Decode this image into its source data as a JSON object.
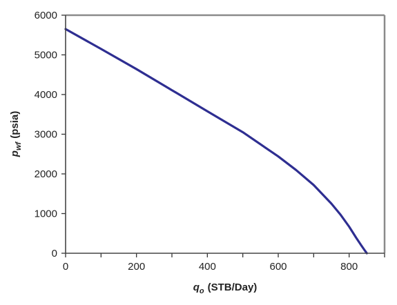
{
  "chart_data": {
    "type": "line",
    "title": "",
    "xlabel": {
      "var": "q",
      "sub": "o",
      "unit": "(STB/Day)"
    },
    "ylabel": {
      "var": "p",
      "sub": "wf",
      "unit": "(psia)"
    },
    "xlim": [
      0,
      900
    ],
    "ylim": [
      0,
      6000
    ],
    "x_ticks": [
      "0",
      "200",
      "400",
      "600",
      "800"
    ],
    "y_ticks": [
      "0",
      "1000",
      "2000",
      "3000",
      "4000",
      "5000",
      "6000"
    ],
    "grid": false,
    "legend": "none",
    "colors": {
      "line": "#2e2e91",
      "frame": "#8a8a8a",
      "tick": "#333333"
    },
    "series": [
      {
        "x": [
          0,
          100,
          200,
          300,
          400,
          500,
          600,
          650,
          700,
          750,
          775,
          800,
          820,
          835,
          845,
          850
        ],
        "y": [
          5651,
          5150,
          4640,
          4110,
          3580,
          3050,
          2440,
          2100,
          1720,
          1250,
          980,
          670,
          390,
          190,
          60,
          0
        ]
      }
    ]
  }
}
